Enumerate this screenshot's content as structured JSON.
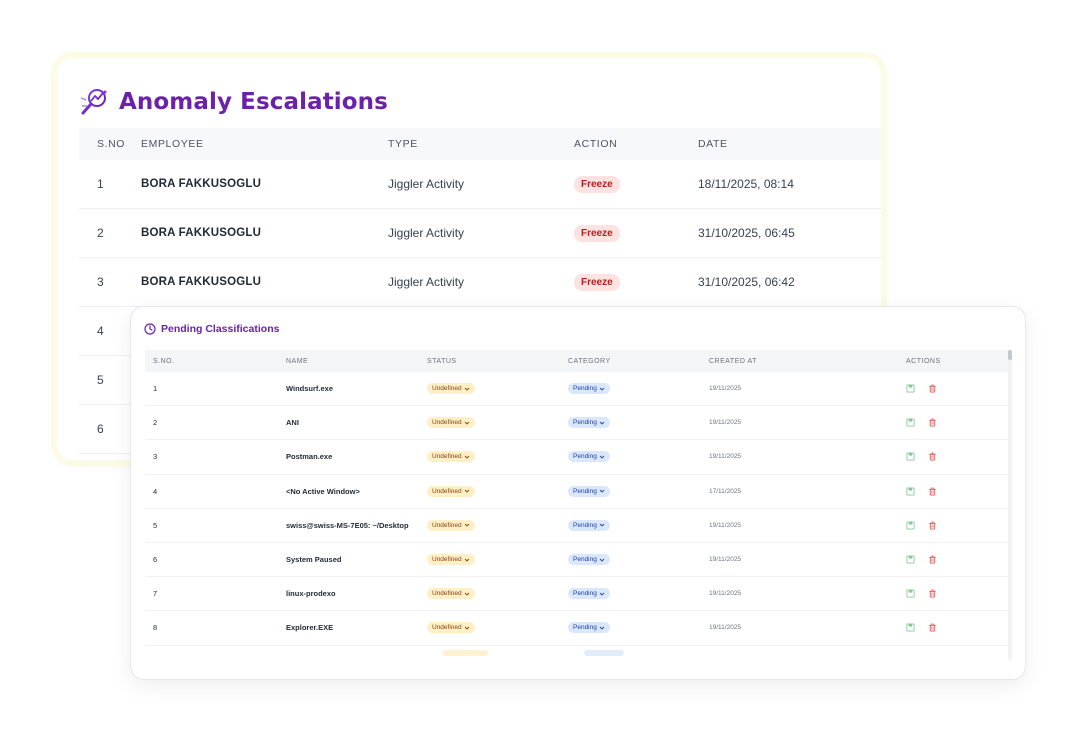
{
  "escalations": {
    "title": "Anomaly Escalations",
    "icon": "magnifier-chart-icon",
    "columns": [
      "S.NO",
      "EMPLOYEE",
      "TYPE",
      "ACTION",
      "DATE"
    ],
    "rows": [
      {
        "sno": "1",
        "employee": "BORA FAKKUSOGLU",
        "type": "Jiggler Activity",
        "action": "Freeze",
        "date": "18/11/2025, 08:14"
      },
      {
        "sno": "2",
        "employee": "BORA FAKKUSOGLU",
        "type": "Jiggler Activity",
        "action": "Freeze",
        "date": "31/10/2025, 06:45"
      },
      {
        "sno": "3",
        "employee": "BORA FAKKUSOGLU",
        "type": "Jiggler Activity",
        "action": "Freeze",
        "date": "31/10/2025, 06:42"
      },
      {
        "sno": "4"
      },
      {
        "sno": "5"
      },
      {
        "sno": "6"
      }
    ],
    "accent_color": "#6b21a8",
    "freeze_color": "#b91c1c"
  },
  "pending": {
    "title": "Pending Classifications",
    "icon": "clock-icon",
    "columns": [
      "S.NO.",
      "NAME",
      "STATUS",
      "CATEGORY",
      "CREATED AT",
      "ACTIONS"
    ],
    "rows": [
      {
        "sno": "1",
        "name": "Windsurf.exe",
        "status": "Undefined",
        "category": "Pending",
        "created": "19/11/2025"
      },
      {
        "sno": "2",
        "name": "ANI",
        "status": "Undefined",
        "category": "Pending",
        "created": "19/11/2025"
      },
      {
        "sno": "3",
        "name": "Postman.exe",
        "status": "Undefined",
        "category": "Pending",
        "created": "19/11/2025"
      },
      {
        "sno": "4",
        "name": "<No Active Window>",
        "status": "Undefined",
        "category": "Pending",
        "created": "17/11/2025"
      },
      {
        "sno": "5",
        "name": "swiss@swiss-MS-7E05: ~/Desktop",
        "status": "Undefined",
        "category": "Pending",
        "created": "19/11/2025"
      },
      {
        "sno": "6",
        "name": "System Paused",
        "status": "Undefined",
        "category": "Pending",
        "created": "19/11/2025"
      },
      {
        "sno": "7",
        "name": "linux-prodexo",
        "status": "Undefined",
        "category": "Pending",
        "created": "19/11/2025"
      },
      {
        "sno": "8",
        "name": "Explorer.EXE",
        "status": "Undefined",
        "category": "Pending",
        "created": "19/11/2025"
      }
    ],
    "action_icons": [
      "save-icon",
      "trash-icon"
    ],
    "status_color": "#92400e",
    "category_color": "#1e40af"
  }
}
